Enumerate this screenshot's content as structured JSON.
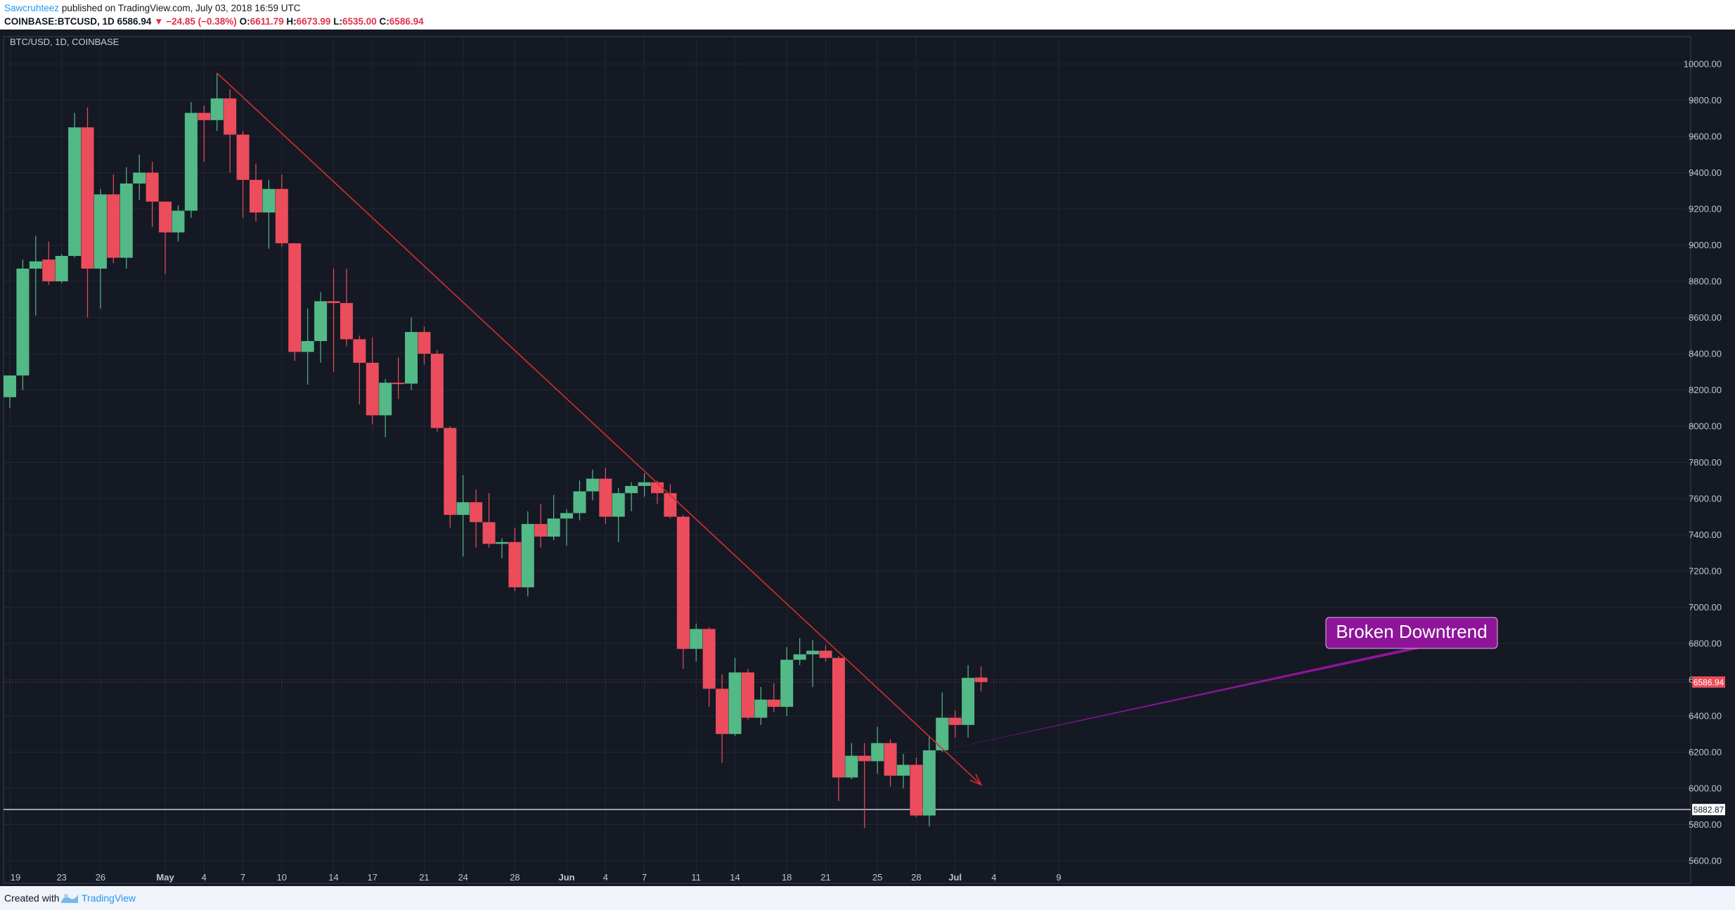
{
  "header": {
    "author": "Sawcruhteez",
    "published_text": "published on TradingView.com, July 03, 2018 16:59 UTC",
    "symbol_info": "COINBASE:BTCUSD, 1D",
    "last_price": "6586.94",
    "change": "▼ −24.85 (−0.38%)",
    "open_label": "O:",
    "open": "6611.79",
    "high_label": "H:",
    "high": "6673.99",
    "low_label": "L:",
    "low": "6535.00",
    "close_label": "C:",
    "close": "6586.94"
  },
  "chart_symbol": "BTC/USD, 1D, COINBASE",
  "footer": {
    "created_with": "Created with",
    "brand": "TradingView"
  },
  "colors": {
    "background": "#151924",
    "up": "#53b987",
    "down": "#eb4d5c",
    "trendline": "#d32f2f",
    "annotation": "#8e1599",
    "price_tag": "#eb4d5c"
  },
  "chart_data": {
    "type": "candlestick",
    "title": "BTC/USD, 1D, COINBASE",
    "ylim": [
      5520,
      10080
    ],
    "y_ticks": [
      "10000.00",
      "9800.00",
      "9600.00",
      "9400.00",
      "9200.00",
      "9000.00",
      "8800.00",
      "8600.00",
      "8400.00",
      "8200.00",
      "8000.00",
      "7800.00",
      "7600.00",
      "7400.00",
      "7200.00",
      "7000.00",
      "6800.00",
      "6600.00",
      "6400.00",
      "6200.00",
      "6000.00",
      "5800.00",
      "5600.00"
    ],
    "x_ticks": [
      "19",
      "23",
      "26",
      "May",
      "4",
      "7",
      "10",
      "14",
      "17",
      "21",
      "24",
      "28",
      "Jun",
      "4",
      "7",
      "11",
      "14",
      "18",
      "21",
      "25",
      "28",
      "Jul",
      "4",
      "9"
    ],
    "x_tick_dates": [
      "2018-04-19",
      "2018-04-23",
      "2018-04-26",
      "2018-05-01",
      "2018-05-04",
      "2018-05-07",
      "2018-05-10",
      "2018-05-14",
      "2018-05-17",
      "2018-05-21",
      "2018-05-24",
      "2018-05-28",
      "2018-06-01",
      "2018-06-04",
      "2018-06-07",
      "2018-06-11",
      "2018-06-14",
      "2018-06-18",
      "2018-06-21",
      "2018-06-25",
      "2018-06-28",
      "2018-07-01",
      "2018-07-04",
      "2018-07-09"
    ],
    "candles": [
      {
        "date": "2018-04-19",
        "o": 8160,
        "h": 8280,
        "l": 8100,
        "c": 8280
      },
      {
        "date": "2018-04-20",
        "o": 8280,
        "h": 8920,
        "l": 8200,
        "c": 8870
      },
      {
        "date": "2018-04-21",
        "o": 8870,
        "h": 9050,
        "l": 8610,
        "c": 8910
      },
      {
        "date": "2018-04-22",
        "o": 8920,
        "h": 9020,
        "l": 8780,
        "c": 8800
      },
      {
        "date": "2018-04-23",
        "o": 8800,
        "h": 8950,
        "l": 8790,
        "c": 8940
      },
      {
        "date": "2018-04-24",
        "o": 8940,
        "h": 9730,
        "l": 8930,
        "c": 9650
      },
      {
        "date": "2018-04-25",
        "o": 9650,
        "h": 9760,
        "l": 8600,
        "c": 8870
      },
      {
        "date": "2018-04-26",
        "o": 8870,
        "h": 9310,
        "l": 8650,
        "c": 9280
      },
      {
        "date": "2018-04-27",
        "o": 9280,
        "h": 9390,
        "l": 8900,
        "c": 8930
      },
      {
        "date": "2018-04-28",
        "o": 8930,
        "h": 9430,
        "l": 8870,
        "c": 9340
      },
      {
        "date": "2018-04-29",
        "o": 9340,
        "h": 9500,
        "l": 9250,
        "c": 9400
      },
      {
        "date": "2018-04-30",
        "o": 9400,
        "h": 9460,
        "l": 9100,
        "c": 9240
      },
      {
        "date": "2018-05-01",
        "o": 9240,
        "h": 9240,
        "l": 8840,
        "c": 9070
      },
      {
        "date": "2018-05-02",
        "o": 9070,
        "h": 9220,
        "l": 9020,
        "c": 9190
      },
      {
        "date": "2018-05-03",
        "o": 9190,
        "h": 9790,
        "l": 9150,
        "c": 9730
      },
      {
        "date": "2018-05-04",
        "o": 9730,
        "h": 9770,
        "l": 9460,
        "c": 9690
      },
      {
        "date": "2018-05-05",
        "o": 9690,
        "h": 9950,
        "l": 9630,
        "c": 9810
      },
      {
        "date": "2018-05-06",
        "o": 9810,
        "h": 9860,
        "l": 9400,
        "c": 9610
      },
      {
        "date": "2018-05-07",
        "o": 9610,
        "h": 9630,
        "l": 9150,
        "c": 9360
      },
      {
        "date": "2018-05-08",
        "o": 9360,
        "h": 9450,
        "l": 9130,
        "c": 9180
      },
      {
        "date": "2018-05-09",
        "o": 9180,
        "h": 9360,
        "l": 8980,
        "c": 9310
      },
      {
        "date": "2018-05-10",
        "o": 9310,
        "h": 9390,
        "l": 8990,
        "c": 9010
      },
      {
        "date": "2018-05-11",
        "o": 9010,
        "h": 9010,
        "l": 8360,
        "c": 8410
      },
      {
        "date": "2018-05-12",
        "o": 8410,
        "h": 8650,
        "l": 8230,
        "c": 8470
      },
      {
        "date": "2018-05-13",
        "o": 8470,
        "h": 8740,
        "l": 8350,
        "c": 8690
      },
      {
        "date": "2018-05-14",
        "o": 8690,
        "h": 8870,
        "l": 8300,
        "c": 8680
      },
      {
        "date": "2018-05-15",
        "o": 8680,
        "h": 8870,
        "l": 8440,
        "c": 8480
      },
      {
        "date": "2018-05-16",
        "o": 8480,
        "h": 8500,
        "l": 8120,
        "c": 8350
      },
      {
        "date": "2018-05-17",
        "o": 8350,
        "h": 8490,
        "l": 8010,
        "c": 8060
      },
      {
        "date": "2018-05-18",
        "o": 8060,
        "h": 8260,
        "l": 7940,
        "c": 8240
      },
      {
        "date": "2018-05-19",
        "o": 8240,
        "h": 8380,
        "l": 8150,
        "c": 8235
      },
      {
        "date": "2018-05-20",
        "o": 8235,
        "h": 8600,
        "l": 8200,
        "c": 8520
      },
      {
        "date": "2018-05-21",
        "o": 8520,
        "h": 8550,
        "l": 8340,
        "c": 8400
      },
      {
        "date": "2018-05-22",
        "o": 8400,
        "h": 8420,
        "l": 7970,
        "c": 7990
      },
      {
        "date": "2018-05-23",
        "o": 7990,
        "h": 8000,
        "l": 7440,
        "c": 7510
      },
      {
        "date": "2018-05-24",
        "o": 7510,
        "h": 7730,
        "l": 7280,
        "c": 7580
      },
      {
        "date": "2018-05-25",
        "o": 7580,
        "h": 7650,
        "l": 7330,
        "c": 7470
      },
      {
        "date": "2018-05-26",
        "o": 7470,
        "h": 7630,
        "l": 7330,
        "c": 7350
      },
      {
        "date": "2018-05-27",
        "o": 7350,
        "h": 7380,
        "l": 7270,
        "c": 7360
      },
      {
        "date": "2018-05-28",
        "o": 7360,
        "h": 7440,
        "l": 7090,
        "c": 7110
      },
      {
        "date": "2018-05-29",
        "o": 7110,
        "h": 7530,
        "l": 7060,
        "c": 7460
      },
      {
        "date": "2018-05-30",
        "o": 7460,
        "h": 7570,
        "l": 7330,
        "c": 7390
      },
      {
        "date": "2018-05-31",
        "o": 7390,
        "h": 7620,
        "l": 7370,
        "c": 7490
      },
      {
        "date": "2018-06-01",
        "o": 7490,
        "h": 7540,
        "l": 7340,
        "c": 7520
      },
      {
        "date": "2018-06-02",
        "o": 7520,
        "h": 7700,
        "l": 7480,
        "c": 7640
      },
      {
        "date": "2018-06-03",
        "o": 7640,
        "h": 7760,
        "l": 7590,
        "c": 7710
      },
      {
        "date": "2018-06-04",
        "o": 7710,
        "h": 7770,
        "l": 7460,
        "c": 7500
      },
      {
        "date": "2018-06-05",
        "o": 7500,
        "h": 7660,
        "l": 7360,
        "c": 7630
      },
      {
        "date": "2018-06-06",
        "o": 7630,
        "h": 7690,
        "l": 7530,
        "c": 7670
      },
      {
        "date": "2018-06-07",
        "o": 7670,
        "h": 7740,
        "l": 7610,
        "c": 7690
      },
      {
        "date": "2018-06-08",
        "o": 7690,
        "h": 7700,
        "l": 7570,
        "c": 7630
      },
      {
        "date": "2018-06-09",
        "o": 7630,
        "h": 7680,
        "l": 7490,
        "c": 7500
      },
      {
        "date": "2018-06-10",
        "o": 7500,
        "h": 7510,
        "l": 6660,
        "c": 6770
      },
      {
        "date": "2018-06-11",
        "o": 6770,
        "h": 6910,
        "l": 6700,
        "c": 6880
      },
      {
        "date": "2018-06-12",
        "o": 6880,
        "h": 6890,
        "l": 6450,
        "c": 6550
      },
      {
        "date": "2018-06-13",
        "o": 6550,
        "h": 6630,
        "l": 6140,
        "c": 6300
      },
      {
        "date": "2018-06-14",
        "o": 6300,
        "h": 6720,
        "l": 6290,
        "c": 6640
      },
      {
        "date": "2018-06-15",
        "o": 6640,
        "h": 6660,
        "l": 6380,
        "c": 6390
      },
      {
        "date": "2018-06-16",
        "o": 6390,
        "h": 6560,
        "l": 6350,
        "c": 6490
      },
      {
        "date": "2018-06-17",
        "o": 6490,
        "h": 6580,
        "l": 6420,
        "c": 6450
      },
      {
        "date": "2018-06-18",
        "o": 6450,
        "h": 6780,
        "l": 6400,
        "c": 6710
      },
      {
        "date": "2018-06-19",
        "o": 6710,
        "h": 6830,
        "l": 6680,
        "c": 6740
      },
      {
        "date": "2018-06-20",
        "o": 6740,
        "h": 6820,
        "l": 6560,
        "c": 6760
      },
      {
        "date": "2018-06-21",
        "o": 6760,
        "h": 6790,
        "l": 6700,
        "c": 6720
      },
      {
        "date": "2018-06-22",
        "o": 6720,
        "h": 6730,
        "l": 5930,
        "c": 6060
      },
      {
        "date": "2018-06-23",
        "o": 6060,
        "h": 6250,
        "l": 6050,
        "c": 6180
      },
      {
        "date": "2018-06-24",
        "o": 6180,
        "h": 6250,
        "l": 5780,
        "c": 6150
      },
      {
        "date": "2018-06-25",
        "o": 6150,
        "h": 6340,
        "l": 6080,
        "c": 6250
      },
      {
        "date": "2018-06-26",
        "o": 6250,
        "h": 6270,
        "l": 6010,
        "c": 6070
      },
      {
        "date": "2018-06-27",
        "o": 6070,
        "h": 6190,
        "l": 6000,
        "c": 6130
      },
      {
        "date": "2018-06-28",
        "o": 6130,
        "h": 6170,
        "l": 5840,
        "c": 5850
      },
      {
        "date": "2018-06-29",
        "o": 5850,
        "h": 6290,
        "l": 5790,
        "c": 6210
      },
      {
        "date": "2018-06-30",
        "o": 6210,
        "h": 6530,
        "l": 6200,
        "c": 6390
      },
      {
        "date": "2018-07-01",
        "o": 6390,
        "h": 6430,
        "l": 6280,
        "c": 6350
      },
      {
        "date": "2018-07-02",
        "o": 6350,
        "h": 6680,
        "l": 6280,
        "c": 6610
      },
      {
        "date": "2018-07-03",
        "o": 6611.79,
        "h": 6673.99,
        "l": 6535,
        "c": 6586.94
      }
    ],
    "trendline": {
      "start": {
        "date": "2018-05-05",
        "price": 9950
      },
      "end": {
        "date": "2018-07-03",
        "price": 6020
      }
    },
    "horizontal_line": {
      "price": 5882.87,
      "label": "5882.87"
    },
    "last_price_line": {
      "price": 6586.94,
      "label": "6586.94"
    },
    "annotation": {
      "text": "Broken Downtrend",
      "target_date": "2018-06-30",
      "target_price": 6210
    }
  }
}
